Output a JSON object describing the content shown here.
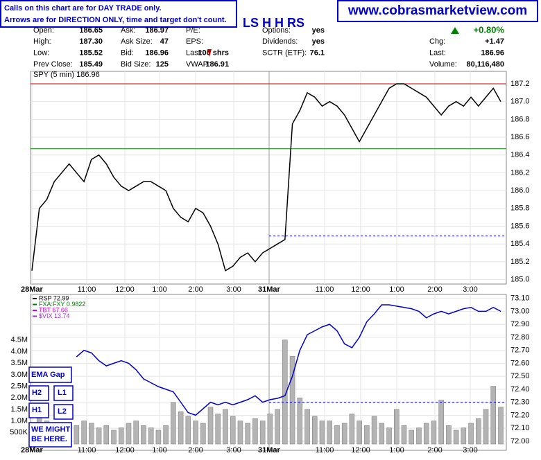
{
  "notice": [
    "Calls on this chart are for DAY TRADE only.",
    "Arrows are for DIRECTION ONLY, time and target don't count."
  ],
  "site": "www.cobrasmarketview.com",
  "pattern": "LS H H RS",
  "quote": {
    "rows": [
      [
        [
          "Open:",
          "186.65"
        ],
        [
          "Ask:",
          "186.97"
        ],
        [
          "P/E:",
          ""
        ],
        [
          "Options:",
          "yes"
        ],
        [
          "",
          ""
        ]
      ],
      [
        [
          "High:",
          "187.30"
        ],
        [
          "Ask Size:",
          "47"
        ],
        [
          "EPS:",
          ""
        ],
        [
          "Dividends:",
          "yes"
        ],
        [
          "Chg:",
          "+1.47"
        ]
      ],
      [
        [
          "Low:",
          "185.52"
        ],
        [
          "Bid:",
          "186.96"
        ],
        [
          "Last:",
          "100 shrs"
        ],
        [
          "SCTR (ETF):",
          "76.1"
        ],
        [
          "Last:",
          "186.96"
        ]
      ],
      [
        [
          "Prev Close:",
          "185.49"
        ],
        [
          "Bid Size:",
          "125"
        ],
        [
          "VWAP:",
          "186.91"
        ],
        [
          "",
          ""
        ],
        [
          "Volume:",
          "80,116,480"
        ]
      ]
    ],
    "change_pct": "+0.80%"
  },
  "annotations": [
    "EMA Gap",
    "H2",
    "L1",
    "H1",
    "L2",
    "WE MIGHT",
    "BE HERE."
  ],
  "chart_data": [
    {
      "type": "line",
      "legend": "SPY (5 min) 186.96",
      "xticks": [
        "28Mar",
        "11:00",
        "12:00",
        "1:00",
        "2:00",
        "3:00",
        "31Mar",
        "11:00",
        "12:00",
        "1:00",
        "2:00",
        "3:00"
      ],
      "series": [
        {
          "name": "SPY",
          "color": "#000000",
          "values": [
            185.1,
            185.8,
            185.9,
            186.1,
            186.2,
            186.3,
            186.2,
            186.1,
            186.35,
            186.4,
            186.3,
            186.15,
            186.05,
            186.0,
            186.05,
            186.1,
            186.1,
            186.05,
            186.0,
            185.8,
            185.7,
            185.65,
            185.8,
            185.75,
            185.6,
            185.4,
            185.1,
            185.15,
            185.25,
            185.3,
            185.2,
            185.3,
            185.35,
            185.4,
            185.45,
            186.75,
            186.9,
            187.1,
            187.05,
            186.95,
            187.0,
            186.95,
            186.85,
            186.7,
            186.55,
            186.7,
            186.85,
            187.0,
            187.15,
            187.2,
            187.2,
            187.15,
            187.1,
            187.05,
            186.95,
            186.85,
            186.95,
            187.0,
            186.95,
            187.05,
            186.95,
            187.05,
            187.15,
            187.0
          ]
        }
      ],
      "hlines": [
        {
          "value": 187.2,
          "color": "#c00000"
        },
        {
          "value": 186.47,
          "color": "#008000"
        },
        {
          "value": 185.49,
          "color": "#0000cc",
          "dashed": true
        }
      ],
      "ylim": [
        184.95,
        187.34
      ],
      "yticks": [
        {
          "value": 185.0,
          "label": "185.0"
        },
        {
          "value": 185.2,
          "label": "185.2"
        },
        {
          "value": 185.4,
          "label": "185.4"
        },
        {
          "value": 185.6,
          "label": "185.6"
        },
        {
          "value": 185.8,
          "label": "185.8"
        },
        {
          "value": 186.0,
          "label": "186.0"
        },
        {
          "value": 186.2,
          "label": "186.2"
        },
        {
          "value": 186.4,
          "label": "186.4"
        },
        {
          "value": 186.6,
          "label": "186.6"
        },
        {
          "value": 186.8,
          "label": "186.8"
        },
        {
          "value": 187.0,
          "label": "187.0"
        },
        {
          "value": 187.2,
          "label": "187.2"
        }
      ]
    },
    {
      "type": "line",
      "legend": [
        "RSP 72.99",
        "FXA:FXY 0.9822",
        "TBT 67.66",
        "$VIX 13.74"
      ],
      "legend_colors": [
        "#000000",
        "#008000",
        "#cc00cc",
        "#9933cc"
      ],
      "xticks": [
        "28Mar",
        "11:00",
        "12:00",
        "1:00",
        "2:00",
        "3:00",
        "31Mar",
        "11:00",
        "12:00",
        "1:00",
        "2:00",
        "3:00"
      ],
      "series": [
        {
          "name": "RSP",
          "color": "#0000cc",
          "values": [
            null,
            null,
            null,
            null,
            null,
            null,
            72.65,
            72.7,
            72.68,
            72.62,
            72.58,
            72.6,
            72.62,
            72.6,
            72.55,
            72.48,
            72.45,
            72.42,
            72.4,
            72.38,
            72.3,
            72.22,
            72.2,
            72.25,
            72.3,
            72.28,
            72.3,
            72.28,
            72.3,
            72.32,
            72.35,
            72.3,
            72.32,
            72.33,
            72.35,
            72.5,
            72.7,
            72.82,
            72.85,
            72.88,
            72.9,
            72.85,
            72.75,
            72.72,
            72.8,
            72.92,
            72.98,
            73.05,
            73.05,
            73.04,
            73.03,
            73.02,
            73.0,
            72.95,
            72.98,
            73.0,
            72.98,
            73.0,
            73.02,
            73.03,
            73.0,
            73.0,
            73.03,
            73.0
          ]
        },
        {
          "name": "Volume",
          "color": "#b4b4b4",
          "axis": "y2",
          "values": [
            0.9,
            1.2,
            1.0,
            0.8,
            0.9,
            0.7,
            0.8,
            1.0,
            0.9,
            0.7,
            0.8,
            0.6,
            0.7,
            0.9,
            1.0,
            0.8,
            0.7,
            0.6,
            0.8,
            1.8,
            1.4,
            1.2,
            1.0,
            0.9,
            1.6,
            1.3,
            1.5,
            1.2,
            1.0,
            0.9,
            1.1,
            1.0,
            1.3,
            1.5,
            4.5,
            3.8,
            2.0,
            1.5,
            1.2,
            1.0,
            1.0,
            0.8,
            0.9,
            1.3,
            1.0,
            0.8,
            1.2,
            0.9,
            0.7,
            1.5,
            0.8,
            0.6,
            0.7,
            0.9,
            1.0,
            1.9,
            0.8,
            0.6,
            0.7,
            0.9,
            1.1,
            1.5,
            2.5,
            1.6
          ]
        }
      ],
      "hlines": [
        {
          "value": 72.3,
          "color": "#0000cc",
          "dashed": true
        }
      ],
      "ylim": [
        71.93,
        73.13
      ],
      "yticks": [
        {
          "value": 72.0,
          "label": "72.00"
        },
        {
          "value": 72.1,
          "label": "72.10"
        },
        {
          "value": 72.2,
          "label": "72.20"
        },
        {
          "value": 72.3,
          "label": "72.30"
        },
        {
          "value": 72.4,
          "label": "72.40"
        },
        {
          "value": 72.5,
          "label": "72.50"
        },
        {
          "value": 72.6,
          "label": "72.60"
        },
        {
          "value": 72.7,
          "label": "72.70"
        },
        {
          "value": 72.8,
          "label": "72.80"
        },
        {
          "value": 72.9,
          "label": "72.90"
        },
        {
          "value": 73.0,
          "label": "73.00"
        },
        {
          "value": 73.1,
          "label": "73.10"
        }
      ],
      "y2lim": [
        0,
        6.47
      ],
      "y2ticks": [
        {
          "value": 0.5,
          "label": "500K"
        },
        {
          "value": 1.0,
          "label": "1.0M"
        },
        {
          "value": 1.5,
          "label": "1.5M"
        },
        {
          "value": 2.0,
          "label": "2.0M"
        },
        {
          "value": 2.5,
          "label": "2.5M"
        },
        {
          "value": 3.0,
          "label": "3.0M"
        },
        {
          "value": 3.5,
          "label": "3.5M"
        },
        {
          "value": 4.0,
          "label": "4.0M"
        },
        {
          "value": 4.5,
          "label": "4.5M"
        }
      ]
    }
  ]
}
